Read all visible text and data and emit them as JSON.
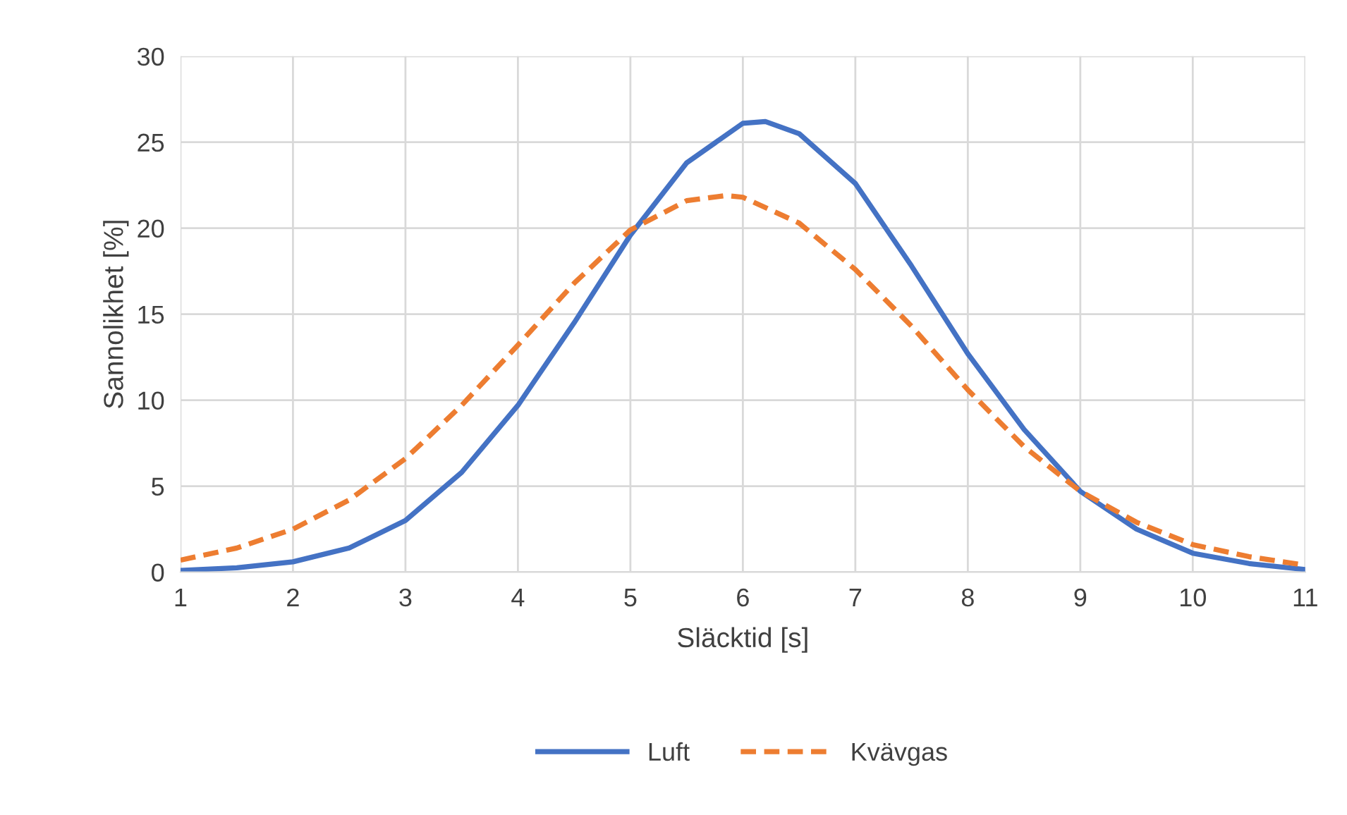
{
  "chart_data": {
    "type": "line",
    "xlabel": "Släcktid [s]",
    "ylabel": "Sannolikhet [%]",
    "xlim": [
      1,
      11
    ],
    "xticks": [
      1,
      2,
      3,
      4,
      5,
      6,
      7,
      8,
      9,
      10,
      11
    ],
    "ylim": [
      0,
      30
    ],
    "yticks": [
      0,
      5,
      10,
      15,
      20,
      25,
      30
    ],
    "grid": true,
    "legend": "bottom",
    "marker": "none",
    "series": [
      {
        "name": "Luft",
        "color": "#4472c4",
        "line_style": "solid",
        "x": [
          1,
          1.5,
          2,
          2.5,
          3,
          3.5,
          4,
          4.5,
          5,
          5.5,
          6,
          6.2,
          6.5,
          7,
          7.5,
          8,
          8.5,
          9,
          9.5,
          10,
          10.5,
          11
        ],
        "values": [
          0.1,
          0.25,
          0.6,
          1.4,
          3.0,
          5.8,
          9.7,
          14.5,
          19.6,
          23.8,
          26.1,
          26.2,
          25.5,
          22.6,
          17.8,
          12.7,
          8.3,
          4.7,
          2.5,
          1.1,
          0.5,
          0.15
        ]
      },
      {
        "name": "Kvävgas",
        "color": "#ed7d31",
        "line_style": "dashed",
        "x": [
          1,
          1.5,
          2,
          2.5,
          3,
          3.5,
          4,
          4.5,
          5,
          5.5,
          5.85,
          6,
          6.5,
          7,
          7.5,
          8,
          8.5,
          9,
          9.5,
          10,
          10.5,
          11
        ],
        "values": [
          0.7,
          1.4,
          2.5,
          4.2,
          6.6,
          9.7,
          13.2,
          16.8,
          19.9,
          21.6,
          21.9,
          21.8,
          20.3,
          17.6,
          14.3,
          10.6,
          7.3,
          4.7,
          2.9,
          1.6,
          0.9,
          0.4
        ]
      }
    ]
  }
}
